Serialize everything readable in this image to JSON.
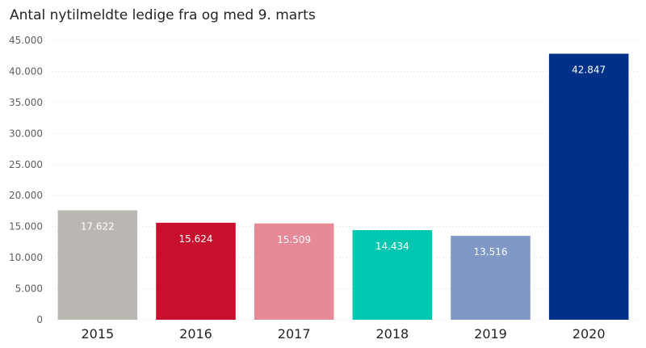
{
  "chart_data": {
    "type": "bar",
    "title": "Antal nytilmeldte ledige fra og med 9. marts",
    "categories": [
      "2015",
      "2016",
      "2017",
      "2018",
      "2019",
      "2020"
    ],
    "values": [
      17622,
      15624,
      15509,
      14434,
      13516,
      42847
    ],
    "data_labels": [
      "17.622",
      "15.624",
      "15.509",
      "14.434",
      "13.516",
      "42.847"
    ],
    "colors": [
      "#bab6b2",
      "#c8102e",
      "#e58a96",
      "#00c8b0",
      "#7f98c6",
      "#003189"
    ],
    "y_ticks": [
      0,
      5000,
      10000,
      15000,
      20000,
      25000,
      30000,
      35000,
      40000,
      45000
    ],
    "y_tick_labels": [
      "0",
      "5.000",
      "10.000",
      "15.000",
      "20.000",
      "25.000",
      "30.000",
      "35.000",
      "40.000",
      "45.000"
    ],
    "ylim": [
      0,
      45000
    ],
    "xlabel": "",
    "ylabel": "",
    "grid": true,
    "legend": "none"
  }
}
